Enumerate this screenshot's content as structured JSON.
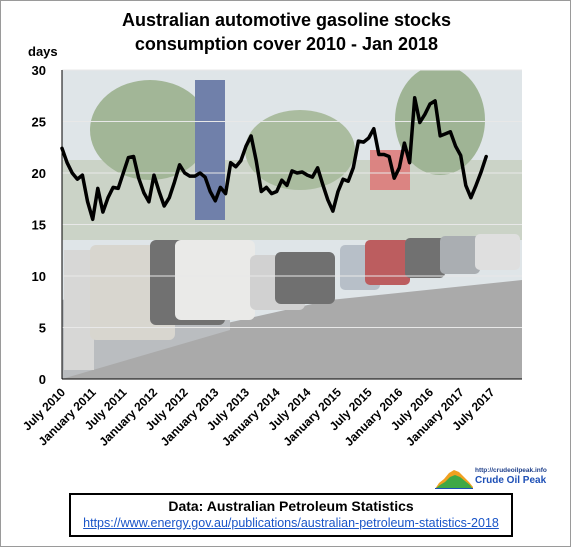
{
  "chart_data": {
    "type": "line",
    "title": [
      "Australian automotive gasoline stocks",
      "consumption cover 2010 - Jan 2018"
    ],
    "ylabel": "days",
    "ylim": [
      0,
      30
    ],
    "yticks": [
      0,
      5,
      10,
      15,
      20,
      25,
      30
    ],
    "grid": true,
    "xlim": [
      "2010-07",
      "2018-01"
    ],
    "xticks": [
      {
        "label": "July 2010",
        "date": "2010-07"
      },
      {
        "label": "January 2011",
        "date": "2011-01"
      },
      {
        "label": "July 2011",
        "date": "2011-07"
      },
      {
        "label": "January 2012",
        "date": "2012-01"
      },
      {
        "label": "July 2012",
        "date": "2012-07"
      },
      {
        "label": "January 2013",
        "date": "2013-01"
      },
      {
        "label": "July 2013",
        "date": "2013-07"
      },
      {
        "label": "January 2014",
        "date": "2014-01"
      },
      {
        "label": "July 2014",
        "date": "2014-07"
      },
      {
        "label": "January 2015",
        "date": "2015-01"
      },
      {
        "label": "July 2015",
        "date": "2015-07"
      },
      {
        "label": "January 2016",
        "date": "2016-01"
      },
      {
        "label": "July 2016",
        "date": "2016-07"
      },
      {
        "label": "January 2017",
        "date": "2017-01"
      },
      {
        "label": "July 2017",
        "date": "2017-07"
      }
    ],
    "series": [
      {
        "color": "#000000",
        "x": [
          "2010-07",
          "2010-08",
          "2010-09",
          "2010-10",
          "2010-11",
          "2010-12",
          "2011-01",
          "2011-02",
          "2011-03",
          "2011-04",
          "2011-05",
          "2011-06",
          "2011-07",
          "2011-08",
          "2011-09",
          "2011-10",
          "2011-11",
          "2011-12",
          "2012-01",
          "2012-02",
          "2012-03",
          "2012-04",
          "2012-05",
          "2012-06",
          "2012-07",
          "2012-08",
          "2012-09",
          "2012-10",
          "2012-11",
          "2012-12",
          "2013-01",
          "2013-02",
          "2013-03",
          "2013-04",
          "2013-05",
          "2013-06",
          "2013-07",
          "2013-08",
          "2013-09",
          "2013-10",
          "2013-11",
          "2013-12",
          "2014-01",
          "2014-02",
          "2014-03",
          "2014-04",
          "2014-05",
          "2014-06",
          "2014-07",
          "2014-08",
          "2014-09",
          "2014-10",
          "2014-11",
          "2014-12",
          "2015-01",
          "2015-02",
          "2015-03",
          "2015-04",
          "2015-05",
          "2015-06",
          "2015-07",
          "2015-08",
          "2015-09",
          "2015-10",
          "2015-11",
          "2015-12",
          "2016-01",
          "2016-02",
          "2016-03",
          "2016-04",
          "2016-05",
          "2016-06",
          "2016-07",
          "2016-08",
          "2016-09",
          "2016-10",
          "2016-11",
          "2016-12",
          "2017-01",
          "2017-02",
          "2017-03",
          "2017-04",
          "2017-05",
          "2017-06",
          "2017-07",
          "2017-08",
          "2017-09",
          "2017-10",
          "2017-11",
          "2017-12",
          "2018-01"
        ],
        "values": [
          22.4,
          21.0,
          20.0,
          19.4,
          19.8,
          17.2,
          15.5,
          18.5,
          16.2,
          17.6,
          18.6,
          18.5,
          20.0,
          21.5,
          21.6,
          19.5,
          18.1,
          17.2,
          19.8,
          18.2,
          16.8,
          17.6,
          19.1,
          20.8,
          20.0,
          19.7,
          19.7,
          20.0,
          19.6,
          18.2,
          17.3,
          18.6,
          18.0,
          21.0,
          20.6,
          21.2,
          22.6,
          23.6,
          21.2,
          18.2,
          18.6,
          18.0,
          18.2,
          19.3,
          18.8,
          20.2,
          20.0,
          20.1,
          19.8,
          19.6,
          20.5,
          18.9,
          17.4,
          16.3,
          18.2,
          19.4,
          19.2,
          20.5,
          23.1,
          23.0,
          23.4,
          24.3,
          21.8,
          21.8,
          21.6,
          19.5,
          20.5,
          22.9,
          21.0,
          27.3,
          24.9,
          25.7,
          26.7,
          27.0,
          23.6,
          23.8,
          24.0,
          22.6,
          21.7,
          18.8,
          17.6,
          18.8,
          20.1,
          21.6,
          null,
          null,
          null,
          null,
          null,
          null,
          null
        ]
      }
    ]
  },
  "source": {
    "label": "Data: Australian Petroleum Statistics",
    "url": "https://www.energy.gov.au/publications/australian-petroleum-statistics-2018"
  },
  "logo": {
    "url_text": "http://crudeoilpeak.info",
    "name": "Crude Oil Peak",
    "colors": {
      "blue": "#1d4fb6",
      "green": "#3fa845",
      "orange": "#f0a020"
    }
  },
  "background_photo": {
    "icon": "street-queue-photo",
    "palette": {
      "sky": "#cfd7dd",
      "road": "#6f6f6f",
      "tree": "#6f8f5f",
      "car": "#b9bec2"
    }
  }
}
